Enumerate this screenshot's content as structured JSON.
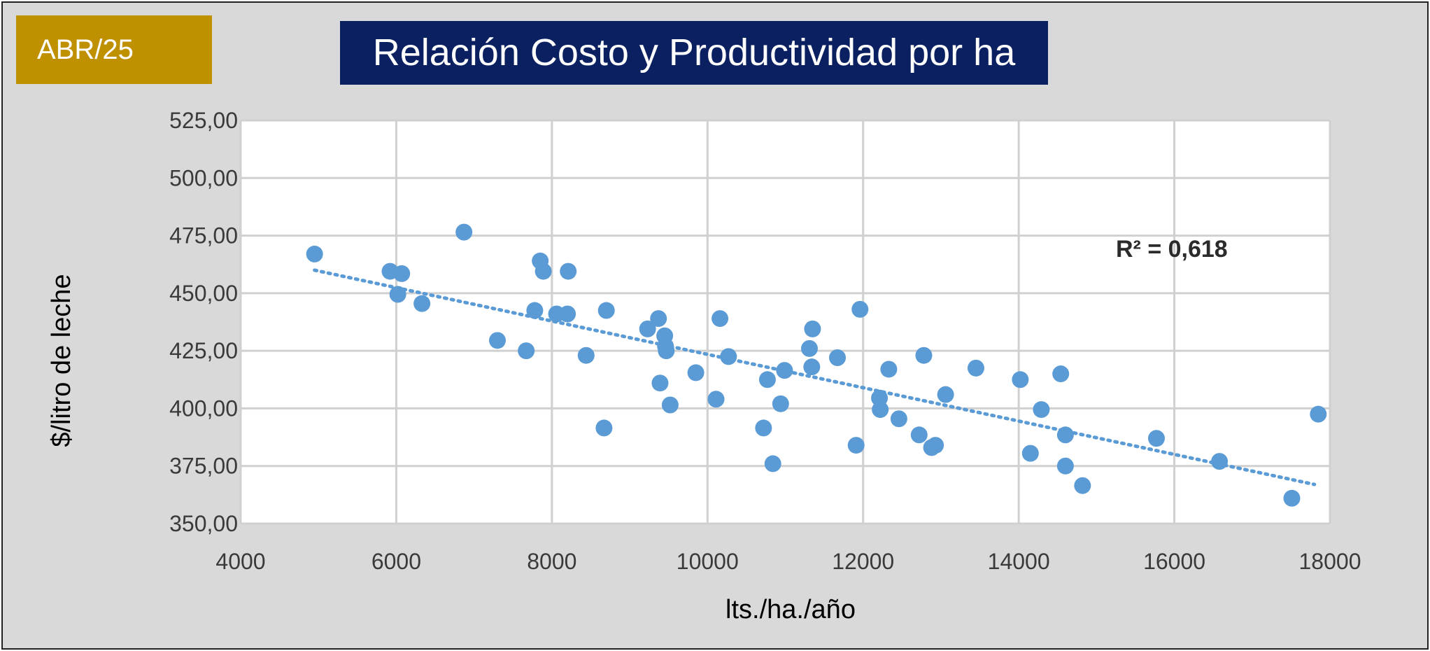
{
  "badge": {
    "label": "ABR/25",
    "color": "#bf9000"
  },
  "header": {
    "title": "Relación Costo y Productividad por ha",
    "color": "#0b2060"
  },
  "chart_data": {
    "type": "scatter",
    "title": "Relación Costo y Productividad por ha",
    "xlabel": "lts./ha./año",
    "ylabel": "$/litro de leche",
    "xlim": [
      4000,
      18000
    ],
    "ylim": [
      350,
      525
    ],
    "xticks": [
      4000,
      6000,
      8000,
      10000,
      12000,
      14000,
      16000,
      18000
    ],
    "xtick_labels": [
      "4000",
      "6000",
      "8000",
      "10000",
      "12000",
      "14000",
      "16000",
      "18000"
    ],
    "yticks": [
      350,
      375,
      400,
      425,
      450,
      475,
      500,
      525
    ],
    "ytick_labels": [
      "350,00",
      "375,00",
      "400,00",
      "425,00",
      "450,00",
      "475,00",
      "500,00",
      "525,00"
    ],
    "grid": true,
    "marker_color": "#5b9bd5",
    "trendline": {
      "type": "linear",
      "x_start": 4950,
      "y_start": 460,
      "x_end": 17800,
      "y_end": 367,
      "r2_label": "R² = 0,618",
      "color": "#5b9bd5",
      "style": "dotted"
    },
    "points": [
      {
        "x": 4950,
        "y": 467
      },
      {
        "x": 5920,
        "y": 459.5
      },
      {
        "x": 6020,
        "y": 449.5
      },
      {
        "x": 6070,
        "y": 458.5
      },
      {
        "x": 6330,
        "y": 445.5
      },
      {
        "x": 6870,
        "y": 476.5
      },
      {
        "x": 7300,
        "y": 429.5
      },
      {
        "x": 7670,
        "y": 425
      },
      {
        "x": 7780,
        "y": 442.5
      },
      {
        "x": 7850,
        "y": 464
      },
      {
        "x": 7890,
        "y": 459.5
      },
      {
        "x": 8060,
        "y": 441
      },
      {
        "x": 8200,
        "y": 441
      },
      {
        "x": 8210,
        "y": 459.5
      },
      {
        "x": 8440,
        "y": 423
      },
      {
        "x": 8670,
        "y": 391.5
      },
      {
        "x": 8700,
        "y": 442.5
      },
      {
        "x": 9230,
        "y": 434.5
      },
      {
        "x": 9370,
        "y": 439
      },
      {
        "x": 9390,
        "y": 411
      },
      {
        "x": 9450,
        "y": 431.5
      },
      {
        "x": 9460,
        "y": 427
      },
      {
        "x": 9470,
        "y": 425
      },
      {
        "x": 9520,
        "y": 401.5
      },
      {
        "x": 9850,
        "y": 415.5
      },
      {
        "x": 10110,
        "y": 404
      },
      {
        "x": 10160,
        "y": 439
      },
      {
        "x": 10270,
        "y": 422.5
      },
      {
        "x": 10720,
        "y": 391.5
      },
      {
        "x": 10770,
        "y": 412.5
      },
      {
        "x": 10840,
        "y": 376
      },
      {
        "x": 10940,
        "y": 402
      },
      {
        "x": 10990,
        "y": 416.5
      },
      {
        "x": 11310,
        "y": 426
      },
      {
        "x": 11340,
        "y": 418
      },
      {
        "x": 11350,
        "y": 434.5
      },
      {
        "x": 11670,
        "y": 422
      },
      {
        "x": 11910,
        "y": 384
      },
      {
        "x": 11960,
        "y": 443
      },
      {
        "x": 12210,
        "y": 404.5
      },
      {
        "x": 12220,
        "y": 399.5
      },
      {
        "x": 12330,
        "y": 417
      },
      {
        "x": 12460,
        "y": 395.5
      },
      {
        "x": 12720,
        "y": 388.5
      },
      {
        "x": 12780,
        "y": 423
      },
      {
        "x": 12880,
        "y": 383
      },
      {
        "x": 12930,
        "y": 384
      },
      {
        "x": 13060,
        "y": 406
      },
      {
        "x": 13450,
        "y": 417.5
      },
      {
        "x": 14020,
        "y": 412.5
      },
      {
        "x": 14150,
        "y": 380.5
      },
      {
        "x": 14290,
        "y": 399.5
      },
      {
        "x": 14540,
        "y": 415
      },
      {
        "x": 14600,
        "y": 388.5
      },
      {
        "x": 14600,
        "y": 375
      },
      {
        "x": 14820,
        "y": 366.5
      },
      {
        "x": 15770,
        "y": 387
      },
      {
        "x": 16580,
        "y": 377
      },
      {
        "x": 17510,
        "y": 361
      },
      {
        "x": 17850,
        "y": 397.5
      }
    ]
  }
}
